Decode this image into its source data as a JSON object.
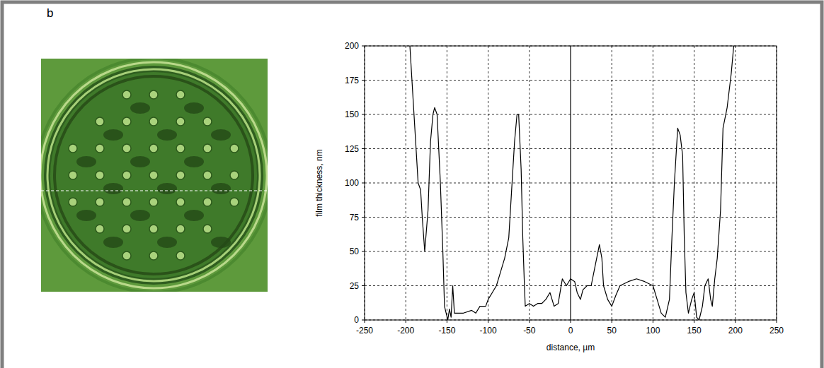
{
  "panel": "b",
  "chart_data": {
    "type": "line",
    "x_label": "distance, µm",
    "y_label": "film thickness, nm",
    "x": [
      -195,
      -190,
      -185,
      -182,
      -180,
      -177,
      -173,
      -170,
      -167,
      -165,
      -162,
      -158,
      -155,
      -153,
      -151,
      -149,
      -147,
      -145,
      -143,
      -141,
      -138,
      -130,
      -120,
      -115,
      -110,
      -103,
      -100,
      -95,
      -90,
      -85,
      -80,
      -75,
      -72,
      -68,
      -65,
      -63,
      -60,
      -58,
      -56,
      -55,
      -50,
      -45,
      -40,
      -35,
      -30,
      -25,
      -20,
      -15,
      -10,
      -5,
      0,
      5,
      8,
      12,
      15,
      20,
      25,
      30,
      35,
      38,
      40,
      45,
      50,
      55,
      60,
      70,
      80,
      90,
      100,
      105,
      110,
      115,
      120,
      123,
      126,
      130,
      133,
      136,
      138,
      140,
      143,
      147,
      150,
      153,
      156,
      160,
      163,
      167,
      170,
      172,
      175,
      178,
      182,
      185,
      190,
      195,
      198
    ],
    "values": [
      200,
      150,
      100,
      95,
      75,
      50,
      80,
      130,
      150,
      155,
      150,
      100,
      50,
      10,
      5,
      0,
      8,
      2,
      25,
      5,
      5,
      5,
      7,
      5,
      10,
      10,
      15,
      20,
      25,
      35,
      45,
      60,
      90,
      130,
      150,
      150,
      110,
      60,
      25,
      10,
      12,
      10,
      12,
      12,
      15,
      20,
      10,
      12,
      30,
      25,
      30,
      28,
      20,
      15,
      22,
      25,
      25,
      40,
      55,
      45,
      25,
      15,
      10,
      18,
      25,
      28,
      30,
      28,
      25,
      15,
      5,
      2,
      15,
      60,
      100,
      140,
      135,
      120,
      60,
      20,
      5,
      15,
      20,
      2,
      0,
      10,
      25,
      30,
      15,
      10,
      30,
      45,
      80,
      140,
      155,
      180,
      200
    ],
    "color": "#000000",
    "xlim": [
      -250,
      250
    ],
    "xticks": [
      -250,
      -200,
      -150,
      -100,
      -50,
      0,
      50,
      100,
      150,
      200,
      250
    ],
    "ylim": [
      0,
      200
    ],
    "yticks": [
      0,
      25,
      50,
      75,
      100,
      125,
      150,
      175,
      200
    ],
    "grid": true
  }
}
